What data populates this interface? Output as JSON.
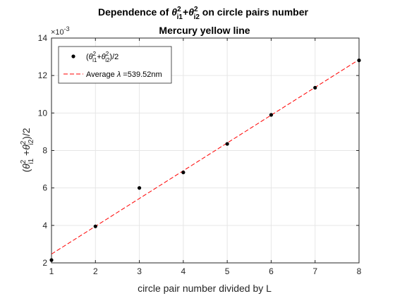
{
  "chart_data": {
    "type": "scatter",
    "title_line1": {
      "prefix": "Dependence of ",
      "theta": "θ",
      "sup": "2",
      "sub1": "i1",
      "plus": "+",
      "sub2": "i2",
      "suffix": " on circle pairs number"
    },
    "title_line2": "Mercury yellow line",
    "xlabel": "circle pair number divided by L",
    "ylabel": {
      "open": "(",
      "theta": "θ",
      "sup": "2",
      "sub1": "i1",
      "plus": " +",
      "sub2": "i2",
      "close": ")/2"
    },
    "y_exponent": "×10",
    "y_exponent_power": "-3",
    "xlim": [
      1,
      8
    ],
    "ylim": [
      0.002,
      0.014
    ],
    "xticks": [
      1,
      2,
      3,
      4,
      5,
      6,
      7,
      8
    ],
    "yticks": [
      0.002,
      0.004,
      0.006,
      0.008,
      0.01,
      0.012,
      0.014
    ],
    "ytick_labels": [
      "2",
      "4",
      "6",
      "8",
      "10",
      "12",
      "14"
    ],
    "grid": true,
    "legend_placement": "top-left",
    "series": [
      {
        "name": "(θ²i1+θ²i2)/2",
        "name_parts": {
          "open": "(",
          "theta": "θ",
          "sup": "2",
          "sub1": "i1",
          "plus": "+",
          "sub2": "i2",
          "close": ")/2"
        },
        "kind": "points",
        "color": "#000000",
        "x": [
          1,
          2,
          3,
          4,
          5,
          6,
          7,
          8
        ],
        "y": [
          0.00215,
          0.00395,
          0.006,
          0.00683,
          0.00835,
          0.0099,
          0.01135,
          0.01281
        ]
      },
      {
        "name": "Average λ =539.52nm",
        "name_parts": {
          "prefix": "Average ",
          "lambda": "λ",
          "suffix": " =539.52nm"
        },
        "kind": "line",
        "style": "dashed",
        "color": "#ff0000",
        "x": [
          1,
          8
        ],
        "y": [
          0.00247,
          0.01285
        ]
      }
    ]
  }
}
